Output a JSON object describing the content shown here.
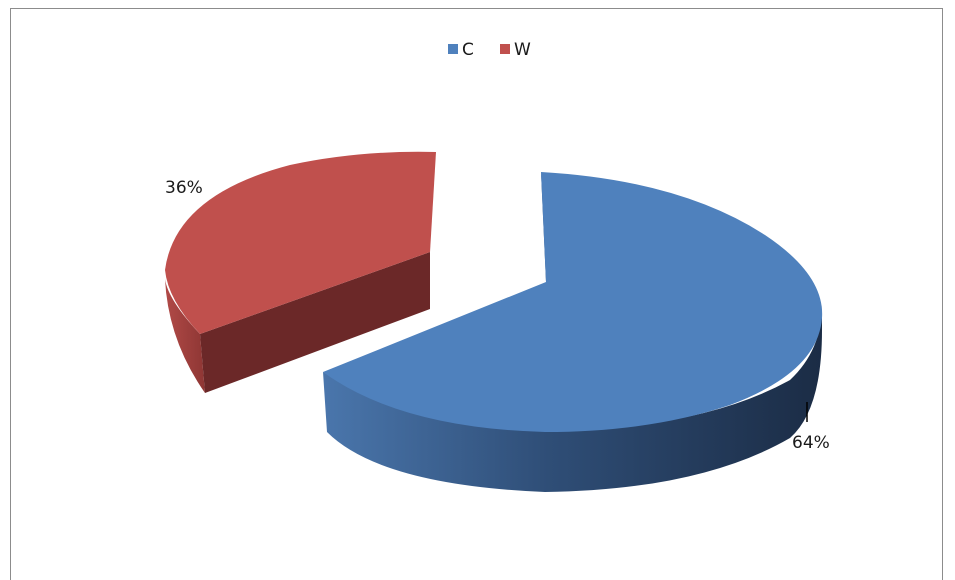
{
  "chart_data": {
    "type": "pie",
    "style": "3d-exploded",
    "title": "",
    "legend_position": "top",
    "series": [
      {
        "name": "",
        "slices": [
          {
            "label": "C",
            "value": 64,
            "display": "64%",
            "color": "#4f81bd"
          },
          {
            "label": "W",
            "value": 36,
            "display": "36%",
            "color": "#c0504d"
          }
        ]
      }
    ]
  }
}
